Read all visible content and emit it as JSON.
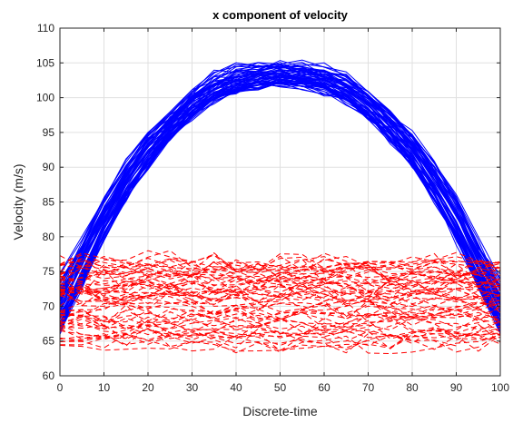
{
  "chart_data": {
    "type": "line",
    "title": "x component of velocity",
    "xlabel": "Discrete-time",
    "ylabel": "Velocity (m/s)",
    "xlim": [
      0,
      100
    ],
    "ylim": [
      60,
      110
    ],
    "xticks": [
      "0",
      "10",
      "20",
      "30",
      "40",
      "50",
      "60",
      "70",
      "80",
      "90",
      "100"
    ],
    "yticks": [
      "60",
      "65",
      "70",
      "75",
      "80",
      "85",
      "90",
      "95",
      "100",
      "105",
      "110"
    ],
    "grid": true,
    "legend": "none",
    "x": [
      0,
      5,
      10,
      15,
      20,
      25,
      30,
      35,
      40,
      45,
      50,
      55,
      60,
      65,
      70,
      75,
      80,
      85,
      90,
      95,
      100
    ],
    "series_groups": [
      {
        "style": "solid",
        "color": "#0000ff",
        "count": 60,
        "representative_values": [
          68.5,
          76,
          82.5,
          88,
          92.5,
          96,
          99,
          101,
          102.5,
          103.3,
          103.5,
          103.3,
          102.5,
          101,
          99,
          96,
          92.5,
          88,
          82.5,
          76,
          68.5
        ],
        "band_min": [
          64,
          71,
          78,
          84,
          89,
          93,
          96,
          98.5,
          100,
          100.8,
          101,
          100.8,
          100,
          98.5,
          96,
          93,
          89,
          84,
          78,
          71,
          64
        ],
        "band_max": [
          76,
          81,
          87,
          92,
          96,
          99,
          102,
          104,
          105,
          105.5,
          105.8,
          105.5,
          105,
          104,
          102,
          99,
          96,
          92,
          87,
          81,
          76
        ]
      },
      {
        "style": "dashed",
        "color": "#ff0000",
        "count": 60,
        "representative_values": [
          70,
          70,
          70,
          70,
          70,
          70,
          70,
          70,
          70,
          70,
          70,
          70,
          70,
          70,
          70,
          70,
          70,
          70,
          70,
          70,
          70
        ],
        "band_min": [
          63,
          62.5,
          62.5,
          62.5,
          62.5,
          62.5,
          62.5,
          62.5,
          62.5,
          62.5,
          62.5,
          62.5,
          62.5,
          62.5,
          62.5,
          62.5,
          62.5,
          62.5,
          62.5,
          62,
          62
        ],
        "band_max": [
          78,
          78,
          78,
          78,
          78,
          78,
          78,
          78,
          78,
          78,
          78,
          78,
          78,
          78,
          78,
          78,
          78,
          78,
          78,
          78,
          78
        ]
      }
    ]
  }
}
